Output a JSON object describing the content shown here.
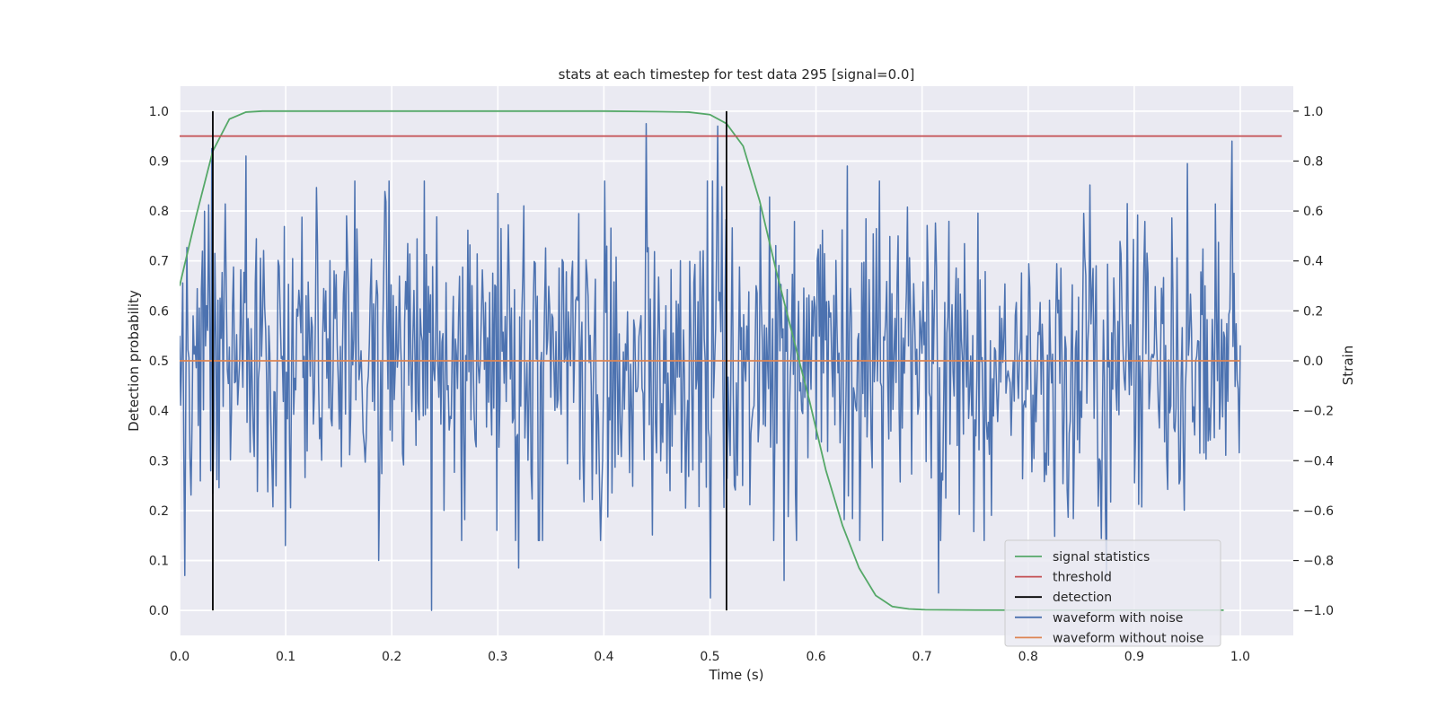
{
  "chart_data": {
    "type": "line",
    "title": "stats at each timestep for test data 295 [signal=0.0]",
    "xlabel": "Time (s)",
    "ylabel_left": "Detection probability",
    "ylabel_right": "Strain",
    "xlim": [
      0.0,
      1.05
    ],
    "ylim_left": [
      -0.05,
      1.05
    ],
    "ylim_right": [
      -1.1,
      1.1
    ],
    "xticks": [
      0.0,
      0.1,
      0.2,
      0.3,
      0.4,
      0.5,
      0.6,
      0.7,
      0.8,
      0.9,
      1.0
    ],
    "xtick_labels": [
      "0.0",
      "0.1",
      "0.2",
      "0.3",
      "0.4",
      "0.5",
      "0.6",
      "0.7",
      "0.8",
      "0.9",
      "1.0"
    ],
    "yticks_left": [
      0.0,
      0.1,
      0.2,
      0.3,
      0.4,
      0.5,
      0.6,
      0.7,
      0.8,
      0.9,
      1.0
    ],
    "ytick_labels_left": [
      "0.0",
      "0.1",
      "0.2",
      "0.3",
      "0.4",
      "0.5",
      "0.6",
      "0.7",
      "0.8",
      "0.9",
      "1.0"
    ],
    "yticks_right": [
      -1.0,
      -0.8,
      -0.6,
      -0.4,
      -0.2,
      0.0,
      0.2,
      0.4,
      0.6,
      0.8,
      1.0
    ],
    "ytick_labels_right": [
      "−1.0",
      "−0.8",
      "−0.6",
      "−0.4",
      "−0.2",
      "0.0",
      "0.2",
      "0.4",
      "0.6",
      "0.8",
      "1.0"
    ],
    "grid": true,
    "legend_position": "lower-right",
    "background": "#eaeaf2",
    "series": [
      {
        "name": "signal statistics",
        "axis": "left",
        "color": "#55a868",
        "x": [
          0.0,
          0.0156,
          0.0313,
          0.0469,
          0.0625,
          0.0781,
          0.1,
          0.2,
          0.3,
          0.4,
          0.45,
          0.48,
          0.5,
          0.5156,
          0.5313,
          0.5469,
          0.5625,
          0.5781,
          0.5938,
          0.6094,
          0.625,
          0.6406,
          0.6563,
          0.6719,
          0.6875,
          0.7031,
          0.75,
          0.8,
          0.9,
          0.95,
          0.9844
        ],
        "y": [
          0.65,
          0.79,
          0.92,
          0.984,
          0.998,
          1.0,
          1.0,
          1.0,
          1.0,
          1.0,
          0.999,
          0.998,
          0.993,
          0.975,
          0.93,
          0.82,
          0.68,
          0.55,
          0.42,
          0.28,
          0.17,
          0.085,
          0.03,
          0.008,
          0.003,
          0.0015,
          0.0008,
          0.0006,
          0.0005,
          0.0005,
          0.0005
        ]
      },
      {
        "name": "threshold",
        "axis": "left",
        "color": "#c44e52",
        "x": [
          0.0,
          1.0391
        ],
        "y": [
          0.95,
          0.95
        ]
      },
      {
        "name": "detection",
        "axis": "left",
        "color": "#000000",
        "type": "vlines",
        "x": [
          0.0313,
          0.5156
        ],
        "y_range": [
          0.0,
          1.0
        ]
      },
      {
        "name": "waveform with noise",
        "axis": "right",
        "color": "#4c72b0",
        "x_range": [
          0.0,
          1.0
        ],
        "n_samples": 1024,
        "amplitude_std": 0.32,
        "peaks": [
          {
            "x": 0.0,
            "y": 0.1
          },
          {
            "x": 0.005,
            "y": -0.86
          },
          {
            "x": 0.03,
            "y": 0.85
          },
          {
            "x": 0.063,
            "y": 0.82
          },
          {
            "x": 0.1,
            "y": -0.74
          },
          {
            "x": 0.188,
            "y": -0.8
          },
          {
            "x": 0.238,
            "y": -1.0
          },
          {
            "x": 0.3,
            "y": 0.67
          },
          {
            "x": 0.32,
            "y": -0.83
          },
          {
            "x": 0.44,
            "y": 0.95
          },
          {
            "x": 0.5,
            "y": -0.95
          },
          {
            "x": 0.507,
            "y": 0.94
          },
          {
            "x": 0.57,
            "y": -0.88
          },
          {
            "x": 0.63,
            "y": 0.78
          },
          {
            "x": 0.716,
            "y": -0.93
          },
          {
            "x": 0.874,
            "y": -0.87
          },
          {
            "x": 0.95,
            "y": 0.79
          },
          {
            "x": 0.992,
            "y": 0.88
          }
        ]
      },
      {
        "name": "waveform without noise",
        "axis": "right",
        "color": "#dd8452",
        "x": [
          0.0,
          1.0
        ],
        "y": [
          0.0,
          0.0
        ]
      }
    ]
  }
}
